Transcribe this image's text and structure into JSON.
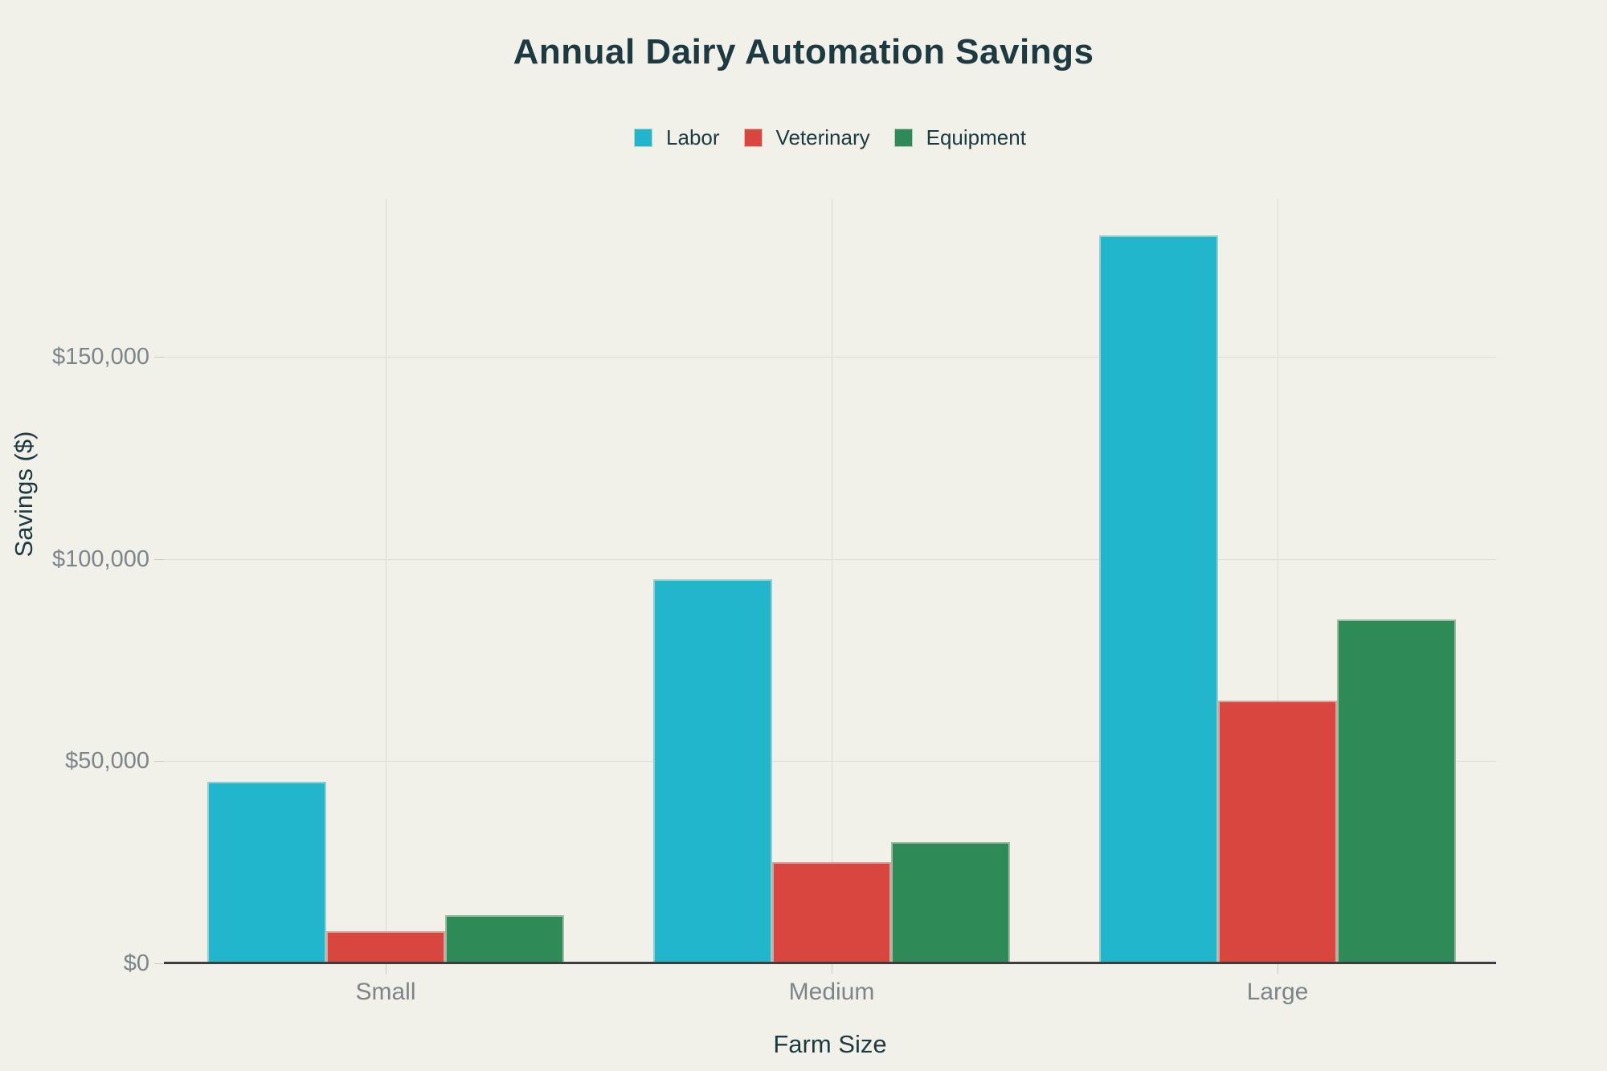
{
  "chart_data": {
    "type": "bar",
    "title": "Annual Dairy Automation Savings",
    "xlabel": "Farm Size",
    "ylabel": "Savings ($)",
    "categories": [
      "Small",
      "Medium",
      "Large"
    ],
    "series": [
      {
        "name": "Labor",
        "color": "#22b6cc",
        "values": [
          45000,
          95000,
          180000
        ]
      },
      {
        "name": "Veterinary",
        "color": "#d9463f",
        "values": [
          8000,
          25000,
          65000
        ]
      },
      {
        "name": "Equipment",
        "color": "#2e8b57",
        "values": [
          12000,
          30000,
          85000
        ]
      }
    ],
    "ylim": [
      0,
      189000
    ],
    "y_ticks": [
      {
        "value": 0,
        "label": "$0"
      },
      {
        "value": 50000,
        "label": "$50,000"
      },
      {
        "value": 100000,
        "label": "$100,000"
      },
      {
        "value": 150000,
        "label": "$150,000"
      }
    ],
    "grid": true,
    "legend_position": "top",
    "legend_labels": [
      "Labor",
      "Veterinary",
      "Equipment"
    ]
  },
  "colors": {
    "background": "#f1f0e9",
    "title_text": "#1d3a42",
    "tick_text": "#7c868a",
    "gridline": "#dcdcd2",
    "axis_line": "#3d3d3d",
    "labor": "#22b6cc",
    "veterinary": "#d9463f",
    "equipment": "#2e8b57"
  }
}
